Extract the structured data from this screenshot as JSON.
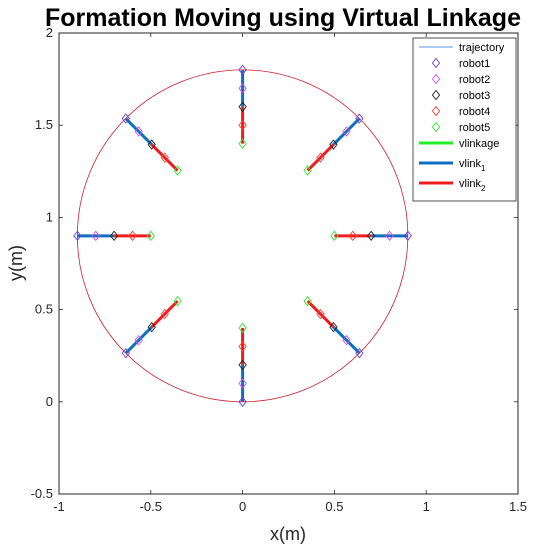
{
  "chart_data": {
    "type": "scatter",
    "title": "Formation Moving using Virtual Linkage",
    "xlabel": "x(m)",
    "ylabel": "y(m)",
    "xlim": [
      -1,
      1.5
    ],
    "ylim": [
      -0.5,
      2
    ],
    "xticks": [
      "-1",
      "-0.5",
      "0",
      "0.5",
      "1",
      "1.5"
    ],
    "yticks": [
      "-0.5",
      "0",
      "0.5",
      "1",
      "1.5",
      "2"
    ],
    "grid": false,
    "legend_position": "top-right",
    "trajectory": {
      "name": "trajectory",
      "color": "#cc1f2e",
      "center": [
        0,
        0.9
      ],
      "radius": 0.9
    },
    "colors": {
      "robot1": "#6a3fd6",
      "robot2": "#d44ce8",
      "robot3": "#222222",
      "robot4": "#ff3b2f",
      "robot5": "#2ee82e",
      "vlinkage": "#22ee22",
      "vlink1": "#0b6fc2",
      "vlink2": "#ee1c1c",
      "trajectory_legend": "#2a6fdb"
    },
    "legend": [
      {
        "key": "trajectory",
        "label": "trajectory",
        "kind": "thinline"
      },
      {
        "key": "robot1",
        "label": "robot1",
        "kind": "marker"
      },
      {
        "key": "robot2",
        "label": "robot2",
        "kind": "marker"
      },
      {
        "key": "robot3",
        "label": "robot3",
        "kind": "marker"
      },
      {
        "key": "robot4",
        "label": "robot4",
        "kind": "marker"
      },
      {
        "key": "robot5",
        "label": "robot5",
        "kind": "marker"
      },
      {
        "key": "vlinkage",
        "label": "vlinkage",
        "sub": "",
        "kind": "thickline"
      },
      {
        "key": "vlink1",
        "label": "vlink",
        "sub": "1",
        "kind": "thickline"
      },
      {
        "key": "vlink2",
        "label": "vlink",
        "sub": "2",
        "kind": "thickline"
      }
    ],
    "formations": [
      {
        "robot1": [
          0.9,
          0.9
        ],
        "robot2": [
          0.8,
          0.9
        ],
        "robot3": [
          0.7,
          0.9
        ],
        "robot4": [
          0.6,
          0.9
        ],
        "robot5": [
          0.5,
          0.9
        ]
      },
      {
        "robot1": [
          0.636,
          1.536
        ],
        "robot2": [
          0.566,
          1.466
        ],
        "robot3": [
          0.495,
          1.395
        ],
        "robot4": [
          0.424,
          1.324
        ],
        "robot5": [
          0.354,
          1.254
        ]
      },
      {
        "robot1": [
          0,
          1.8
        ],
        "robot2": [
          0,
          1.7
        ],
        "robot3": [
          0,
          1.6
        ],
        "robot4": [
          0,
          1.5
        ],
        "robot5": [
          0,
          1.4
        ]
      },
      {
        "robot1": [
          -0.636,
          1.536
        ],
        "robot2": [
          -0.566,
          1.466
        ],
        "robot3": [
          -0.495,
          1.395
        ],
        "robot4": [
          -0.424,
          1.324
        ],
        "robot5": [
          -0.354,
          1.254
        ]
      },
      {
        "robot1": [
          -0.9,
          0.9
        ],
        "robot2": [
          -0.8,
          0.9
        ],
        "robot3": [
          -0.7,
          0.9
        ],
        "robot4": [
          -0.6,
          0.9
        ],
        "robot5": [
          -0.5,
          0.9
        ]
      },
      {
        "robot1": [
          -0.636,
          0.264
        ],
        "robot2": [
          -0.566,
          0.334
        ],
        "robot3": [
          -0.495,
          0.405
        ],
        "robot4": [
          -0.424,
          0.476
        ],
        "robot5": [
          -0.354,
          0.546
        ]
      },
      {
        "robot1": [
          0,
          0
        ],
        "robot2": [
          0,
          0.1
        ],
        "robot3": [
          0,
          0.2
        ],
        "robot4": [
          0,
          0.3
        ],
        "robot5": [
          0,
          0.4
        ]
      },
      {
        "robot1": [
          0.636,
          0.264
        ],
        "robot2": [
          0.566,
          0.334
        ],
        "robot3": [
          0.495,
          0.405
        ],
        "robot4": [
          0.424,
          0.476
        ],
        "robot5": [
          0.354,
          0.546
        ]
      }
    ]
  }
}
